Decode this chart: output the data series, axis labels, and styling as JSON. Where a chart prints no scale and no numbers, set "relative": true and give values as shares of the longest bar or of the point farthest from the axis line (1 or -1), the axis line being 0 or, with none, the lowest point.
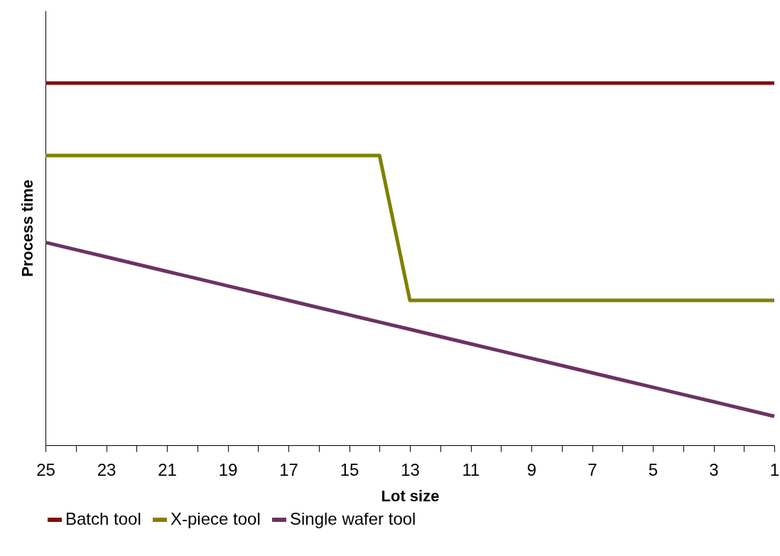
{
  "chart_data": {
    "type": "line",
    "relative": true,
    "xlabel": "Lot size",
    "ylabel": "Process time",
    "categories": [
      "25",
      null,
      "23",
      null,
      "21",
      null,
      "19",
      null,
      "17",
      null,
      "15",
      null,
      "13",
      null,
      "11",
      null,
      "9",
      null,
      "7",
      null,
      "5",
      null,
      "3",
      null,
      "1"
    ],
    "series": [
      {
        "name": "Batch tool",
        "color": "#870a0a",
        "values": [
          1,
          1,
          1,
          1,
          1,
          1,
          1,
          1,
          1,
          1,
          1,
          1,
          1,
          1,
          1,
          1,
          1,
          1,
          1,
          1,
          1,
          1,
          1,
          1,
          1
        ]
      },
      {
        "name": "X-piece tool",
        "color": "#808000",
        "values": [
          0.8,
          0.8,
          0.8,
          0.8,
          0.8,
          0.8,
          0.8,
          0.8,
          0.8,
          0.8,
          0.8,
          0.8,
          0.4,
          0.4,
          0.4,
          0.4,
          0.4,
          0.4,
          0.4,
          0.4,
          0.4,
          0.4,
          0.4,
          0.4,
          0.4
        ]
      },
      {
        "name": "Single wafer tool",
        "color": "#6b3363",
        "values": [
          0.56,
          0.54,
          0.52,
          0.5,
          0.48,
          0.46,
          0.44,
          0.42,
          0.4,
          0.38,
          0.36,
          0.34,
          0.32,
          0.3,
          0.28,
          0.26,
          0.24,
          0.22,
          0.2,
          0.18,
          0.16,
          0.14,
          0.12,
          0.1,
          0.08
        ]
      }
    ],
    "legend": "bottom",
    "grid": false,
    "marker": "none",
    "line_style": "solid"
  }
}
